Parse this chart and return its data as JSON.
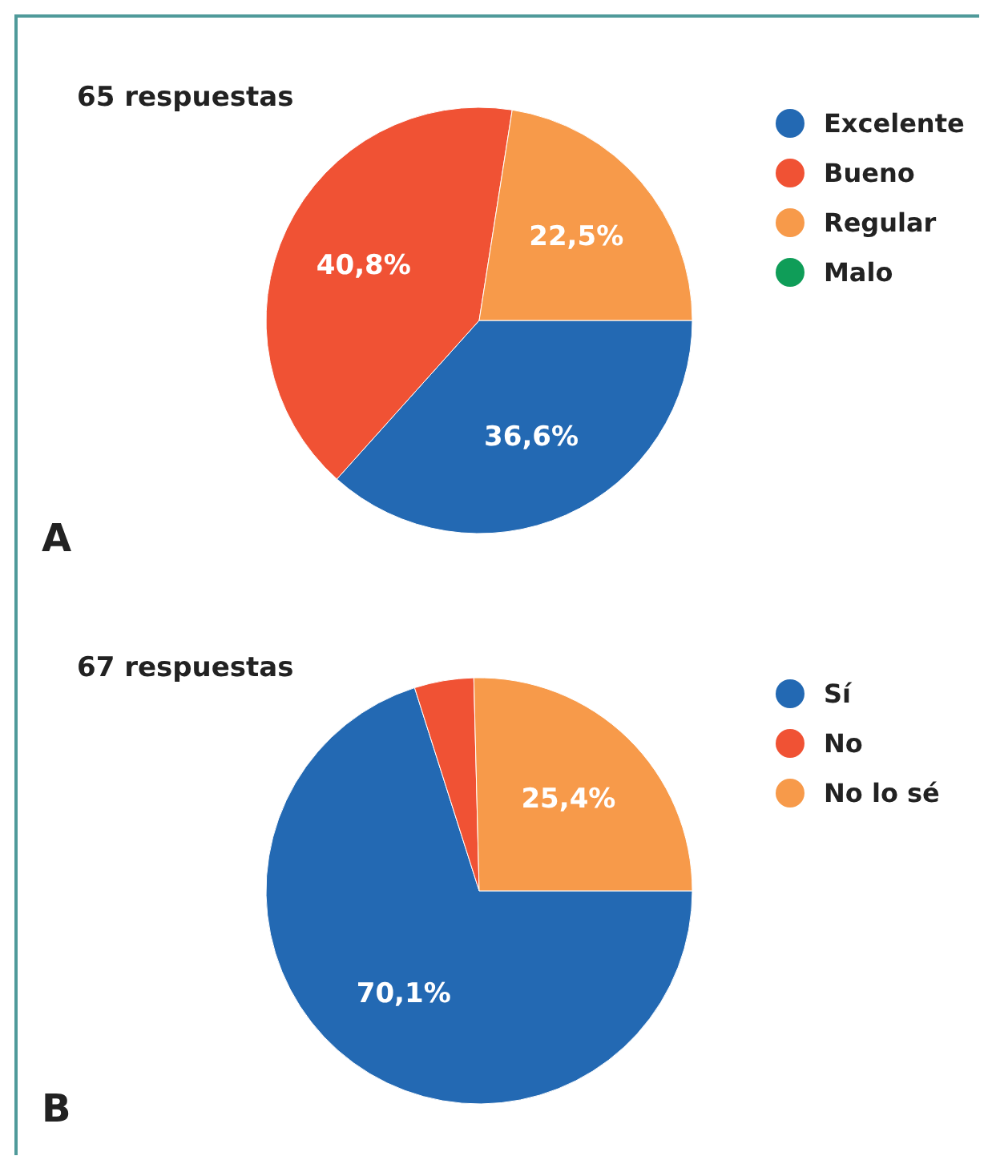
{
  "chart_data": [
    {
      "type": "pie",
      "title": "65 respuestas",
      "categories": [
        "Excelente",
        "Bueno",
        "Regular",
        "Malo"
      ],
      "values": [
        36.6,
        40.8,
        22.5,
        0
      ],
      "colors": [
        "#2369b3",
        "#f05234",
        "#f79a4a",
        "#0f9d58"
      ],
      "value_labels": [
        "36,6%",
        "40,8%",
        "22,5%",
        null
      ],
      "legend": "right",
      "annotations": [
        "A"
      ]
    },
    {
      "type": "pie",
      "title": "67 respuestas",
      "categories": [
        "Sí",
        "No",
        "No lo sé"
      ],
      "values": [
        70.1,
        4.5,
        25.4
      ],
      "colors": [
        "#2369b3",
        "#f05234",
        "#f79a4a"
      ],
      "value_labels": [
        "70,1%",
        null,
        "25,4%"
      ],
      "legend": "right",
      "annotations": [
        "B"
      ]
    }
  ]
}
